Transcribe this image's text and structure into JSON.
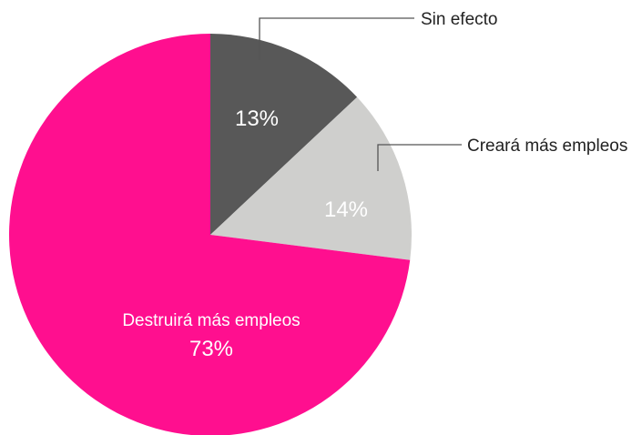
{
  "chart_data": {
    "type": "pie",
    "title": "",
    "slices": [
      {
        "label": "Sin efecto",
        "value": 13,
        "value_label": "13%",
        "color": "#585858",
        "text_color": "#ffffff"
      },
      {
        "label": "Creará más empleos",
        "value": 14,
        "value_label": "14%",
        "color": "#cfcfcd",
        "text_color": "#ffffff"
      },
      {
        "label": "Destruirá más empleos",
        "value": 73,
        "value_label": "73%",
        "color": "#ff0f8f",
        "text_color": "#ffffff"
      }
    ],
    "start_angle_deg": 0,
    "direction": "clockwise",
    "label_line_color": "#555555",
    "external_label_color": "#222222"
  }
}
